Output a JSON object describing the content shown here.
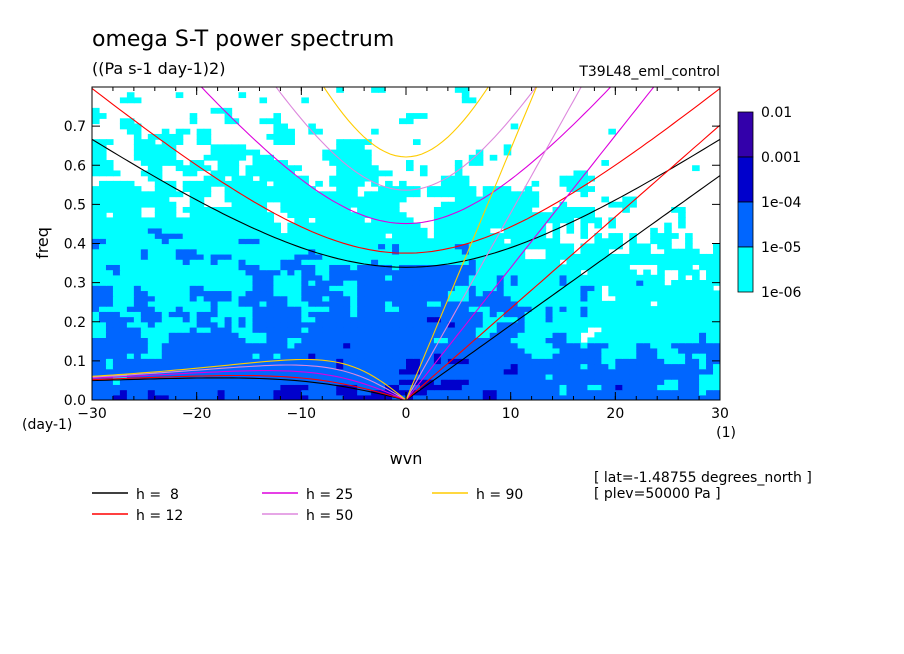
{
  "chart_data": {
    "type": "heatmap",
    "title": "omega S-T power spectrum",
    "subtitle": "((Pa s-1 day-1)2)",
    "dataset": "T39L48_eml_control",
    "xlabel": "wvn",
    "ylabel": "freq",
    "x_unit": "(1)",
    "y_unit": "(day-1)",
    "xlim": [
      -30,
      30
    ],
    "ylim": [
      0,
      0.8
    ],
    "xticks": [
      "-30",
      "-20",
      "-10",
      "0",
      "10",
      "20",
      "30"
    ],
    "yticks": [
      "0.0",
      "0.1",
      "0.2",
      "0.3",
      "0.4",
      "0.5",
      "0.6",
      "0.7"
    ],
    "colorbar": {
      "labels": [
        "0.01",
        "0.001",
        "1e-04",
        "1e-05",
        "1e-06"
      ],
      "levels": [
        1e-06,
        1e-05,
        0.0001,
        0.001,
        0.01
      ],
      "colors": [
        "#00ffff",
        "#0066ff",
        "#0000cc",
        "#3300aa"
      ]
    },
    "dispersion_curves": [
      {
        "label": "h =  8",
        "h": 8,
        "color": "#000000"
      },
      {
        "label": "h = 12",
        "h": 12,
        "color": "#ff0000"
      },
      {
        "label": "h = 25",
        "h": 25,
        "color": "#dd00dd"
      },
      {
        "label": "h = 50",
        "h": 50,
        "color": "#dd88dd"
      },
      {
        "label": "h = 90",
        "h": 90,
        "color": "#ffcc00"
      }
    ],
    "annotations": [
      "[ lat=-1.48755 degrees_north ]",
      "[ plev=50000 Pa ]"
    ]
  }
}
